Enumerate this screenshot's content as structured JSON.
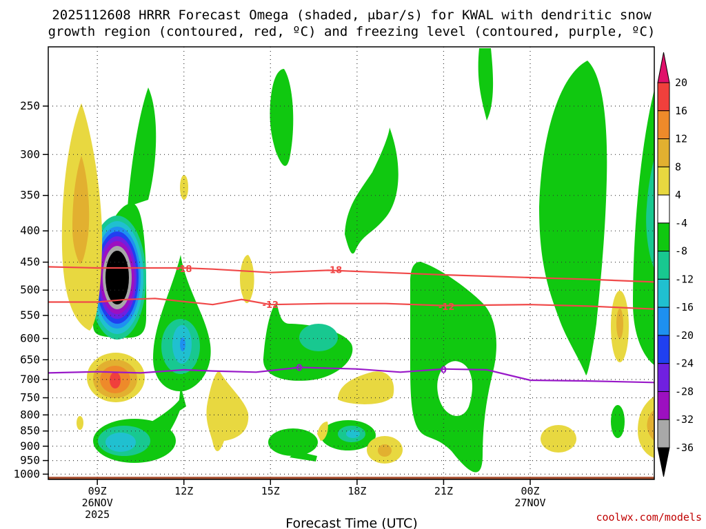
{
  "chart_data": {
    "type": "heatmap",
    "title_line1": "2025112608 HRRR Forecast Omega (shaded, μbar/s) for KWAL with dendritic snow",
    "title_line2": "growth region (contoured, red, ºC) and freezing level (contoured, purple, ºC)",
    "xlabel": "Forecast Time (UTC)",
    "watermark": "coolwx.com/models",
    "y_axis": {
      "scale": "log-pressure",
      "range": [
        1020,
        200
      ],
      "ticks": [
        "250",
        "300",
        "350",
        "400",
        "450",
        "500",
        "550",
        "600",
        "650",
        "700",
        "750",
        "800",
        "850",
        "900",
        "950",
        "1000"
      ],
      "tick_values": [
        250,
        300,
        350,
        400,
        450,
        500,
        550,
        600,
        650,
        700,
        750,
        800,
        850,
        900,
        950,
        1000
      ]
    },
    "x_axis": {
      "range_hours": [
        7.3,
        28.3
      ],
      "ticks": [
        {
          "hour": 9,
          "label": "09Z",
          "date": "26NOV",
          "year": "2025"
        },
        {
          "hour": 12,
          "label": "12Z",
          "date": "",
          "year": ""
        },
        {
          "hour": 15,
          "label": "15Z",
          "date": "",
          "year": ""
        },
        {
          "hour": 18,
          "label": "18Z",
          "date": "",
          "year": ""
        },
        {
          "hour": 21,
          "label": "21Z",
          "date": "",
          "year": ""
        },
        {
          "hour": 24,
          "label": "00Z",
          "date": "27NOV",
          "year": ""
        }
      ]
    },
    "colorbar": {
      "labels": [
        "20",
        "16",
        "12",
        "8",
        "4",
        "-4",
        "-8",
        "-12",
        "-16",
        "-20",
        "-24",
        "-28",
        "-32",
        "-36"
      ],
      "label_values": [
        20,
        16,
        12,
        8,
        4,
        -4,
        -8,
        -12,
        -16,
        -20,
        -24,
        -28,
        -32,
        -36
      ],
      "bins": [
        {
          "lo": 16,
          "hi": 20,
          "color": "#f0403c"
        },
        {
          "lo": 12,
          "hi": 16,
          "color": "#ee8a2a"
        },
        {
          "lo": 8,
          "hi": 12,
          "color": "#e2b030"
        },
        {
          "lo": 4,
          "hi": 8,
          "color": "#e8d840"
        },
        {
          "lo": -4,
          "hi": 4,
          "color": "#ffffff"
        },
        {
          "lo": -8,
          "hi": -4,
          "color": "#10c810"
        },
        {
          "lo": -12,
          "hi": -8,
          "color": "#18c890"
        },
        {
          "lo": -16,
          "hi": -12,
          "color": "#20c0d0"
        },
        {
          "lo": -20,
          "hi": -16,
          "color": "#1e90f0"
        },
        {
          "lo": -24,
          "hi": -20,
          "color": "#2040f0"
        },
        {
          "lo": -28,
          "hi": -24,
          "color": "#7020e0"
        },
        {
          "lo": -32,
          "hi": -28,
          "color": "#9c10c0"
        },
        {
          "lo": -36,
          "hi": -32,
          "color": "#a8a8a8"
        }
      ],
      "top_triangle_color": "#e0106a",
      "bottom_triangle_color": "#000000"
    },
    "contours": [
      {
        "name": "-18",
        "color": "#f04848",
        "label": "-18",
        "points": [
          [
            7.3,
            458
          ],
          [
            9.0,
            460
          ],
          [
            10.5,
            460
          ],
          [
            12.0,
            460
          ],
          [
            13.0,
            462
          ],
          [
            15.0,
            468
          ],
          [
            17.0,
            464
          ],
          [
            19.0,
            468
          ],
          [
            21.0,
            472
          ],
          [
            24.0,
            477
          ],
          [
            26.0,
            480
          ],
          [
            28.3,
            485
          ]
        ],
        "label_positions": [
          [
            12.0,
            461
          ],
          [
            17.2,
            463
          ]
        ]
      },
      {
        "name": "-12",
        "color": "#f04848",
        "label": "-12",
        "points": [
          [
            7.3,
            523
          ],
          [
            9.0,
            523
          ],
          [
            10.0,
            518
          ],
          [
            11.0,
            516
          ],
          [
            12.0,
            522
          ],
          [
            13.0,
            528
          ],
          [
            14.0,
            518
          ],
          [
            15.0,
            528
          ],
          [
            17.0,
            526
          ],
          [
            19.0,
            526
          ],
          [
            21.0,
            530
          ],
          [
            24.0,
            528
          ],
          [
            26.0,
            531
          ],
          [
            28.3,
            537
          ]
        ],
        "label_positions": [
          [
            15.0,
            528
          ],
          [
            21.1,
            532
          ]
        ]
      },
      {
        "name": "0",
        "color": "#9818c8",
        "label": "0",
        "points": [
          [
            7.3,
            683
          ],
          [
            9.0,
            680
          ],
          [
            10.5,
            683
          ],
          [
            12.0,
            675
          ],
          [
            13.0,
            678
          ],
          [
            14.5,
            681
          ],
          [
            16.0,
            669
          ],
          [
            18.0,
            673
          ],
          [
            19.5,
            681
          ],
          [
            21.0,
            673
          ],
          [
            22.5,
            675
          ],
          [
            24.0,
            702
          ],
          [
            26.0,
            704
          ],
          [
            28.3,
            708
          ]
        ],
        "label_positions": [
          [
            16.0,
            669
          ],
          [
            21.0,
            674
          ]
        ]
      }
    ],
    "ground": {
      "color": "#a85030",
      "pressure_top": 1010
    }
  }
}
